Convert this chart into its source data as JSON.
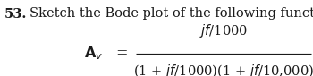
{
  "problem_number": "53.",
  "problem_text": "Sketch the Bode plot of the following function:",
  "numerator": "$\\mathit{jf}$/1000",
  "denominator": "(1 + $\\mathit{jf}$/1000)(1 + $\\mathit{jf}$/10,000)",
  "lhs": "$\\mathbf{A}_{\\mathit{v}}$",
  "equals": "=",
  "bg_color": "#ffffff",
  "text_color": "#1a1a1a",
  "fontsize_header": 10.5,
  "fontsize_formula": 10.5,
  "fig_width": 3.5,
  "fig_height": 0.85,
  "dpi": 100
}
